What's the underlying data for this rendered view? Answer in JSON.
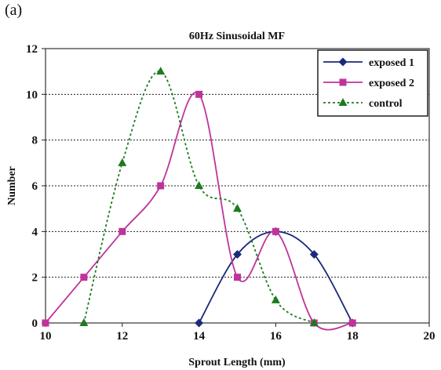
{
  "panel_label": "(a)",
  "chart_data": {
    "type": "line",
    "title": "60Hz Sinusoidal MF",
    "xlabel": "Sprout Length (mm)",
    "ylabel": "Number",
    "xlim": [
      10,
      20
    ],
    "ylim": [
      0,
      12
    ],
    "xticks": [
      10,
      12,
      14,
      16,
      18,
      20
    ],
    "yticks": [
      0,
      2,
      4,
      6,
      8,
      10,
      12
    ],
    "grid": "horizontal dotted",
    "legend_position": "top-right",
    "series": [
      {
        "name": "exposed 1",
        "color": "#1b2a7a",
        "marker": "diamond",
        "line_style": "solid",
        "x": [
          14,
          15,
          16,
          17,
          18
        ],
        "y": [
          0,
          3,
          4,
          3,
          0
        ]
      },
      {
        "name": "exposed 2",
        "color": "#c0339b",
        "marker": "square",
        "line_style": "solid",
        "x": [
          10,
          11,
          12,
          13,
          14,
          15,
          16,
          17,
          18
        ],
        "y": [
          0,
          2,
          4,
          6,
          10,
          2,
          4,
          0,
          0
        ]
      },
      {
        "name": "control",
        "color": "#1e7a1e",
        "marker": "triangle",
        "line_style": "dotted",
        "x": [
          11,
          12,
          13,
          14,
          15,
          16,
          17
        ],
        "y": [
          0,
          7,
          11,
          6,
          5,
          1,
          0
        ]
      }
    ]
  }
}
